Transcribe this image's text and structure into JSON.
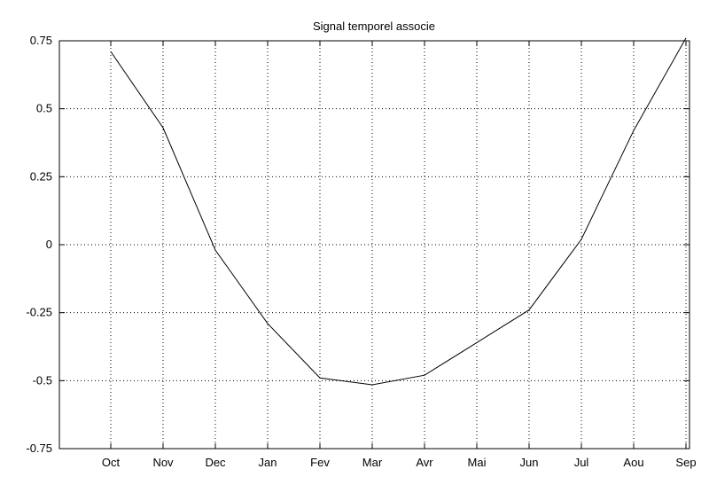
{
  "chart_data": {
    "type": "line",
    "title": "Signal temporel associe",
    "xlabel": "",
    "ylabel": "",
    "categories": [
      "Oct",
      "Nov",
      "Dec",
      "Jan",
      "Fev",
      "Mar",
      "Avr",
      "Mai",
      "Jun",
      "Jul",
      "Aou",
      "Sep"
    ],
    "series": [
      {
        "values": [
          0.71,
          0.43,
          -0.02,
          -0.29,
          -0.49,
          -0.515,
          -0.48,
          -0.36,
          -0.24,
          0.02,
          0.42,
          0.76
        ]
      }
    ],
    "ylim": [
      -0.75,
      0.75
    ],
    "yticks": [
      0.75,
      0.5,
      0.25,
      0,
      -0.25,
      -0.5,
      -0.75
    ],
    "ytick_labels": [
      "0.75",
      "0.5",
      "0.25",
      "0",
      "-0.25",
      "-0.5",
      "-0.75"
    ],
    "grid": true,
    "grid_style": "dotted",
    "line_color": "#000000",
    "background": "#ffffff"
  }
}
